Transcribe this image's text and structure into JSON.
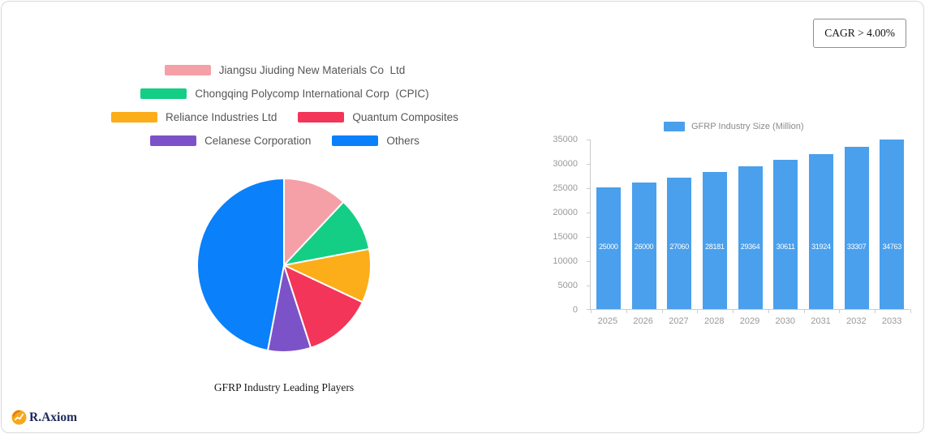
{
  "header": {
    "cagr_badge": "CAGR > 4.00%"
  },
  "footer": {
    "brand": "R.Axiom"
  },
  "chart_data": [
    {
      "type": "pie",
      "title": "GFRP Industry Leading Players",
      "labels": [
        "Jiangsu Jiuding New Materials Co  Ltd",
        "Chongqing Polycomp International Corp  (CPIC)",
        "Reliance Industries Ltd",
        "Quantum Composites",
        "Celanese Corporation",
        "Others"
      ],
      "values": [
        12,
        10,
        10,
        13,
        8,
        47
      ],
      "colors": [
        "#F5A0A6",
        "#15CE85",
        "#FCAD1A",
        "#F23558",
        "#7C52C8",
        "#0A80FA"
      ],
      "legend_position": "top",
      "start_angle_deg": 0,
      "direction": "clockwise"
    },
    {
      "type": "bar",
      "legend": "GFRP Industry Size (Million)",
      "categories": [
        "2025",
        "2026",
        "2027",
        "2028",
        "2029",
        "2030",
        "2031",
        "2032",
        "2033"
      ],
      "values": [
        25000,
        26000,
        27060,
        28181,
        29364,
        30611,
        31924,
        33307,
        34763
      ],
      "bar_color": "#4AA0EC",
      "value_label_color": "#ffffff",
      "ylim": [
        0,
        35000
      ],
      "yticks": [
        0,
        5000,
        10000,
        15000,
        20000,
        25000,
        30000,
        35000
      ],
      "grid": false,
      "legend_position": "top"
    }
  ]
}
